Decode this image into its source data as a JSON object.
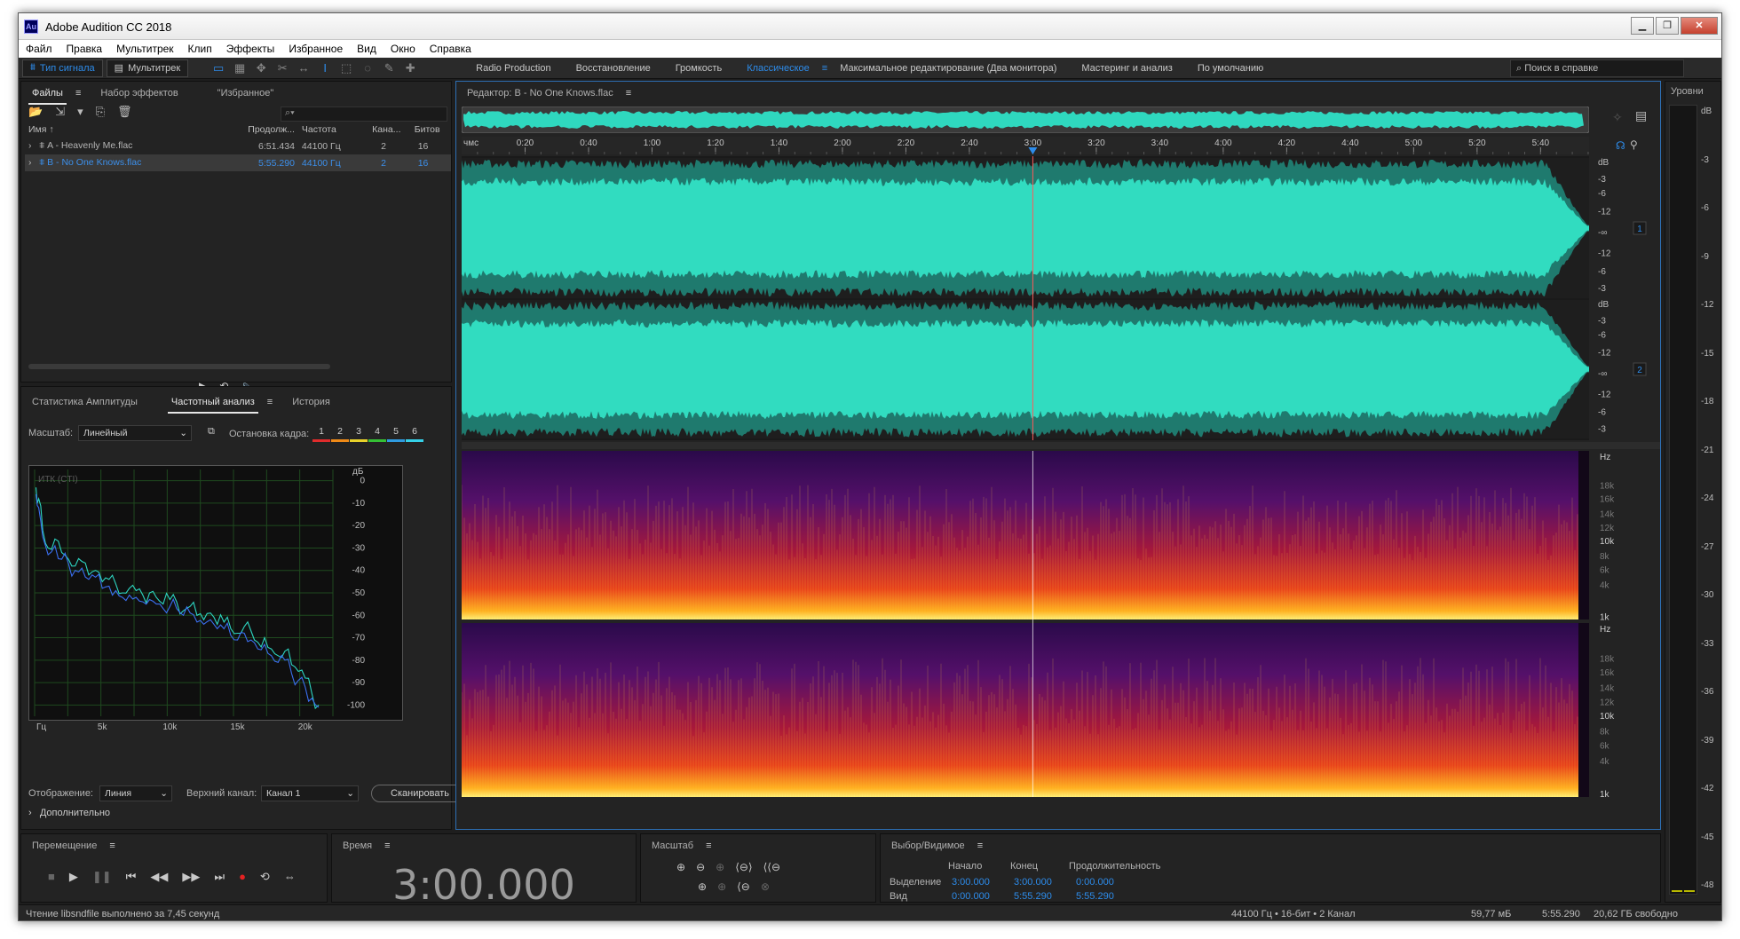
{
  "app": {
    "title": "Adobe Audition CC 2018",
    "logo": "Au"
  },
  "window_buttons": {
    "minimize": "▁",
    "maximize": "❐",
    "close": "✕"
  },
  "menu": [
    "Файл",
    "Правка",
    "Мультитрек",
    "Клип",
    "Эффекты",
    "Избранное",
    "Вид",
    "Окно",
    "Справка"
  ],
  "toolbar": {
    "mode_waveform": "Тип сигнала",
    "mode_multitrack": "Мультитрек",
    "workspaces": [
      "Radio Production",
      "Восстановление",
      "Громкость",
      "Классическое",
      "Максимальное редактирование (Два монитора)",
      "Мастеринг и анализ",
      "По умолчанию"
    ],
    "active_workspace": "Классическое",
    "more": "»",
    "help_placeholder": "Поиск в справке"
  },
  "files_panel": {
    "tabs": [
      "Файлы",
      "Набор эффектов",
      "\"Избранное\""
    ],
    "menu": "≡",
    "columns": [
      "Имя",
      "Продолж...",
      "Частота",
      "Кана...",
      "Битов"
    ],
    "sort_arrow": "↑",
    "rows": [
      {
        "name": "A - Heavenly Me.flac",
        "duration": "6:51.434",
        "rate": "44100 Гц",
        "channels": "2",
        "bits": "16"
      },
      {
        "name": "B - No One Knows.flac",
        "duration": "5:55.290",
        "rate": "44100 Гц",
        "channels": "2",
        "bits": "16"
      }
    ]
  },
  "analysis_panel": {
    "tabs": [
      "Статистика Амплитуды",
      "Частотный анализ",
      "История"
    ],
    "scale_label": "Масштаб:",
    "scale_value": "Линейный",
    "freeze_label": "Остановка кадра:",
    "freeze_buttons": [
      "1",
      "2",
      "3",
      "4",
      "5",
      "6"
    ],
    "freeze_colors": [
      "#e02c2c",
      "#ef8a17",
      "#e8d12a",
      "#35c035",
      "#2f9be0",
      "#35d0e8"
    ],
    "chart_title": "ИТК (CTI)",
    "display_label": "Отображение:",
    "display_value": "Линия",
    "channel_label": "Верхний канал:",
    "channel_value": "Канал 1",
    "scan_button": "Сканировать",
    "advanced": "Дополнительно"
  },
  "chart_data": {
    "type": "line",
    "title": "ИТК (CTI)",
    "xlabel": "Гц",
    "ylabel": "дБ",
    "x_ticks": [
      "Гц",
      "5k",
      "10k",
      "15k",
      "20k"
    ],
    "y_ticks": [
      "0",
      "-10",
      "-20",
      "-30",
      "-40",
      "-50",
      "-60",
      "-70",
      "-80",
      "-90",
      "-100"
    ],
    "xlim": [
      0,
      22050
    ],
    "ylim": [
      -105,
      5
    ],
    "grid": true,
    "series": [
      {
        "x": [
          100,
          300,
          600,
          1000,
          1500,
          2000,
          2500,
          3000,
          3500,
          4000,
          4500,
          5000,
          5500,
          6000,
          6500,
          7000,
          7500,
          8000,
          8500,
          9000,
          9500,
          10000,
          10500,
          11000,
          11500,
          12000,
          12500,
          13000,
          13500,
          14000,
          14500,
          15000,
          15500,
          16000,
          16500,
          17000,
          17500,
          18000,
          18500,
          19000,
          19500,
          20000,
          20500,
          21000
        ],
        "y": [
          -3,
          -8,
          -22,
          -30,
          -26,
          -32,
          -35,
          -38,
          -36,
          -42,
          -40,
          -45,
          -44,
          -46,
          -50,
          -48,
          -49,
          -51,
          -50,
          -52,
          -55,
          -53,
          -54,
          -58,
          -56,
          -60,
          -62,
          -59,
          -64,
          -63,
          -66,
          -68,
          -65,
          -67,
          -72,
          -70,
          -75,
          -78,
          -76,
          -82,
          -85,
          -88,
          -95,
          -100
        ]
      },
      {
        "x": [
          100,
          300,
          600,
          1000,
          1500,
          2000,
          2500,
          3000,
          3500,
          4000,
          4500,
          5000,
          5500,
          6000,
          6500,
          7000,
          7500,
          8000,
          8500,
          9000,
          9500,
          10000,
          10500,
          11000,
          11500,
          12000,
          12500,
          13000,
          13500,
          14000,
          14500,
          15000,
          15500,
          16000,
          16500,
          17000,
          17500,
          18000,
          18500,
          19000,
          19500,
          20000,
          20500,
          21000
        ],
        "y": [
          -6,
          -12,
          -25,
          -33,
          -29,
          -35,
          -37,
          -40,
          -39,
          -44,
          -43,
          -48,
          -47,
          -49,
          -52,
          -51,
          -52,
          -54,
          -53,
          -55,
          -57,
          -56,
          -57,
          -60,
          -59,
          -63,
          -64,
          -62,
          -66,
          -66,
          -69,
          -71,
          -68,
          -71,
          -75,
          -73,
          -78,
          -81,
          -80,
          -86,
          -89,
          -92,
          -97,
          -101
        ]
      }
    ]
  },
  "editor": {
    "title": "Редактор: B - No One Knows.flac",
    "menu": "≡",
    "ruler_unit": "чмс",
    "ruler": [
      "0:20",
      "0:40",
      "1:00",
      "1:20",
      "1:40",
      "2:00",
      "2:20",
      "2:40",
      "3:00",
      "3:20",
      "3:40",
      "4:00",
      "4:20",
      "4:40",
      "5:00",
      "5:20",
      "5:40"
    ],
    "playhead_seconds": 180,
    "total_seconds": 355.29,
    "db_scale": [
      "dB",
      "-3",
      "-6",
      "-12",
      "-∞",
      "-12",
      "-6",
      "-3"
    ],
    "hz_scale": [
      "Hz",
      "18k",
      "16k",
      "14k",
      "12k",
      "10k",
      "8k",
      "6k",
      "4k",
      "1k"
    ],
    "channel_badges": [
      "1",
      "2"
    ]
  },
  "levels": {
    "title": "Уровни",
    "ticks": [
      "dB",
      "-3",
      "-6",
      "-9",
      "-12",
      "-15",
      "-18",
      "-21",
      "-24",
      "-27",
      "-30",
      "-33",
      "-36",
      "-39",
      "-42",
      "-45",
      "-48"
    ]
  },
  "transport": {
    "title": "Перемещение",
    "menu": "≡"
  },
  "time_panel": {
    "title": "Время",
    "menu": "≡",
    "value": "3:00.000"
  },
  "zoom_panel": {
    "title": "Масштаб",
    "menu": "≡"
  },
  "selection_panel": {
    "title": "Выбор/Видимое",
    "menu": "≡",
    "headers": [
      "Начало",
      "Конец",
      "Продолжительность"
    ],
    "rows": [
      {
        "label": "Выделение",
        "start": "3:00.000",
        "end": "3:00.000",
        "duration": "0:00.000"
      },
      {
        "label": "Вид",
        "start": "0:00.000",
        "end": "5:55.290",
        "duration": "5:55.290"
      }
    ]
  },
  "status": {
    "message": "Чтение libsndfile выполнено за 7,45 секунд",
    "format": "44100 Гц • 16-бит • 2 Канал",
    "size": "59,77 мБ",
    "duration": "5:55.290",
    "free": "20,62 ГБ свободно"
  }
}
